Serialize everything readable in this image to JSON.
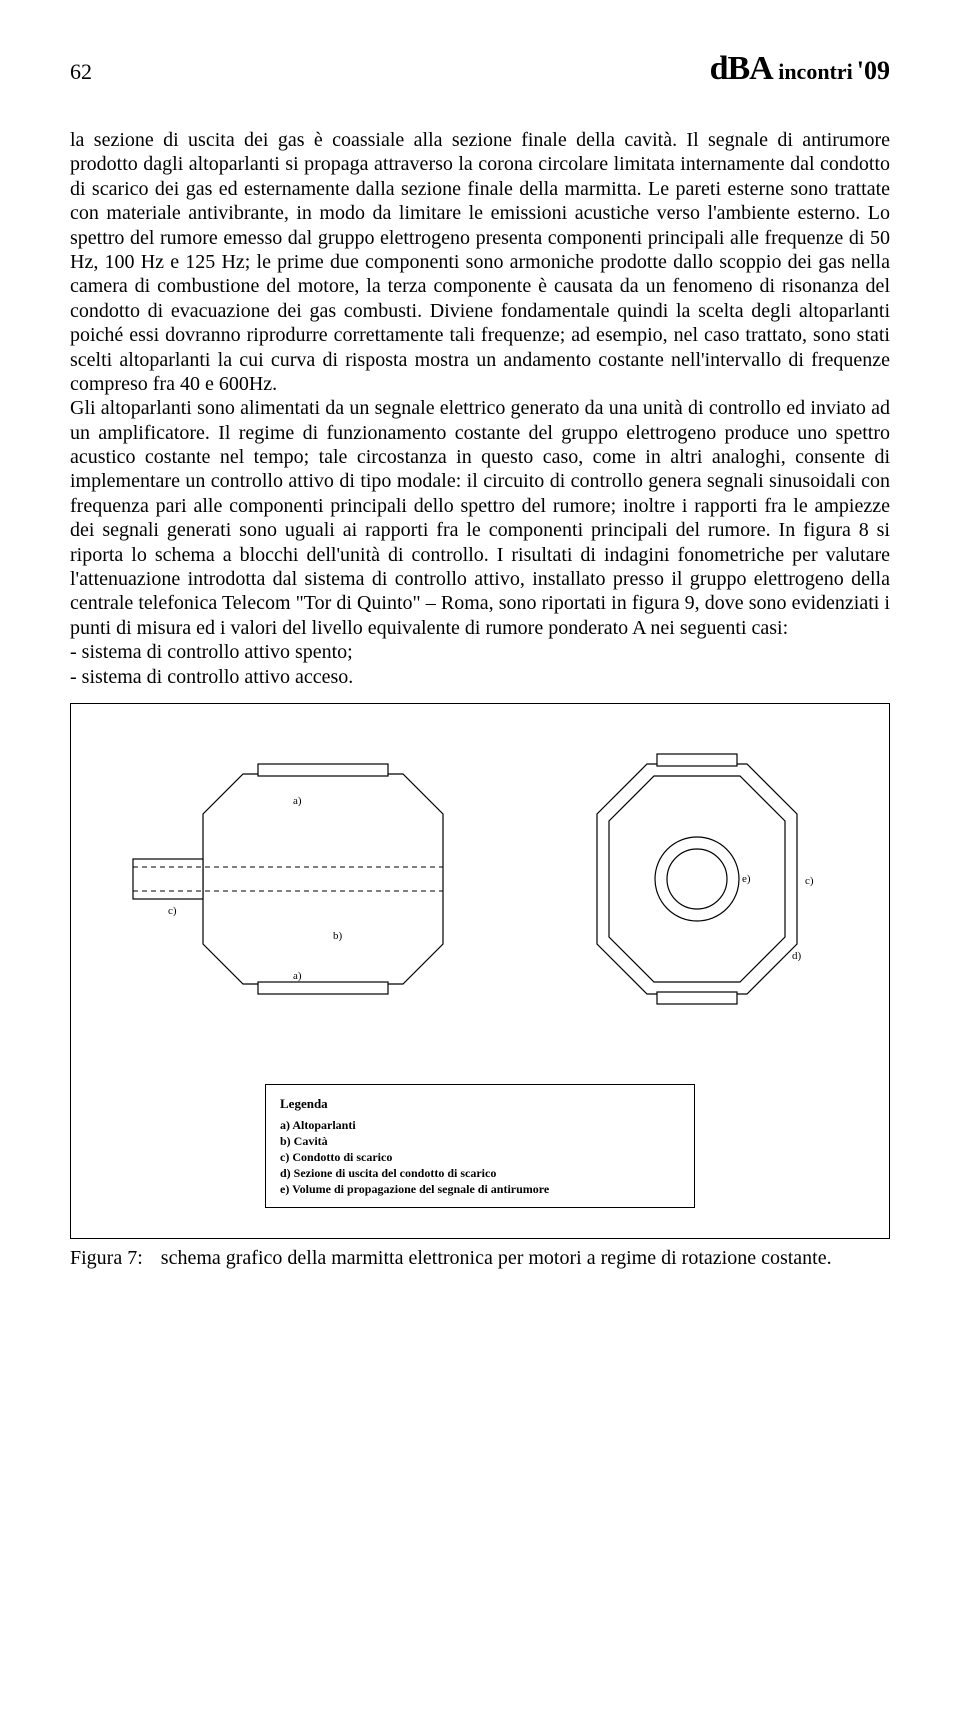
{
  "header": {
    "page_number": "62",
    "logo_dba": "dBA",
    "logo_incontri": "incontri",
    "logo_year": "'09"
  },
  "body": {
    "text": "la sezione di uscita dei gas è coassiale alla sezione finale della cavità. Il segnale di antirumore prodotto dagli altoparlanti si propaga attraverso la corona circolare limitata internamente dal condotto di scarico dei gas ed esternamente dalla sezione finale della marmitta. Le pareti esterne sono trattate con materiale antivibrante, in modo da limitare le emissioni acustiche verso l'ambiente esterno. Lo spettro del rumore emesso dal gruppo elettrogeno presenta componenti principali alle frequenze di 50 Hz, 100 Hz e 125 Hz; le prime due componenti  sono armoniche prodotte dallo scoppio dei gas nella camera di combustione del motore, la terza componente è causata da un fenomeno di risonanza del condotto di evacuazione dei gas combusti. Diviene fondamentale quindi la scelta degli altoparlanti poiché essi dovranno riprodurre correttamente tali frequenze; ad esempio, nel caso trattato, sono stati scelti altoparlanti la cui curva di risposta mostra un andamento costante nell'intervallo di frequenze compreso fra 40 e 600Hz.\nGli altoparlanti sono alimentati da un segnale elettrico generato da una unità di controllo ed inviato ad un amplificatore. Il regime di funzionamento costante del gruppo elettrogeno produce uno spettro acustico costante nel tempo; tale circostanza in questo caso, come in altri analoghi, consente di implementare un controllo attivo di tipo modale: il circuito di controllo genera segnali sinusoidali con frequenza pari alle componenti principali dello spettro del rumore; inoltre i rapporti fra le ampiezze dei segnali generati sono uguali ai rapporti fra le componenti principali del rumore. In figura 8 si riporta lo schema a blocchi dell'unità di controllo. I risultati di indagini fonometriche per valutare l'attenuazione introdotta dal sistema di controllo attivo, installato presso il gruppo elettrogeno della centrale telefonica Telecom \"Tor di Quinto\" – Roma, sono riportati in figura 9, dove sono evidenziati i punti di misura ed i valori del livello equivalente di rumore ponderato A nei seguenti casi:\n- sistema di controllo attivo spento;\n- sistema di controllo attivo acceso."
  },
  "figure": {
    "side_view": {
      "labels": {
        "a1": "a)",
        "a2": "a)",
        "b": "b)",
        "c": "c)"
      },
      "stroke": "#000000",
      "fill": "#ffffff",
      "dash": "4,3"
    },
    "front_view": {
      "labels": {
        "c": "c)",
        "d": "d)",
        "e": "e)"
      },
      "stroke": "#000000",
      "fill": "#ffffff"
    },
    "legend": {
      "title": "Legenda",
      "items": [
        "a) Altoparlanti",
        "b) Cavità",
        "c) Condotto di scarico",
        "d) Sezione di uscita del condotto di scarico",
        "e) Volume di propagazione del segnale di antirumore"
      ]
    },
    "caption_label": "Figura  7:",
    "caption_text": "schema grafico della marmitta elettronica per motori a regime di rotazione costante."
  }
}
